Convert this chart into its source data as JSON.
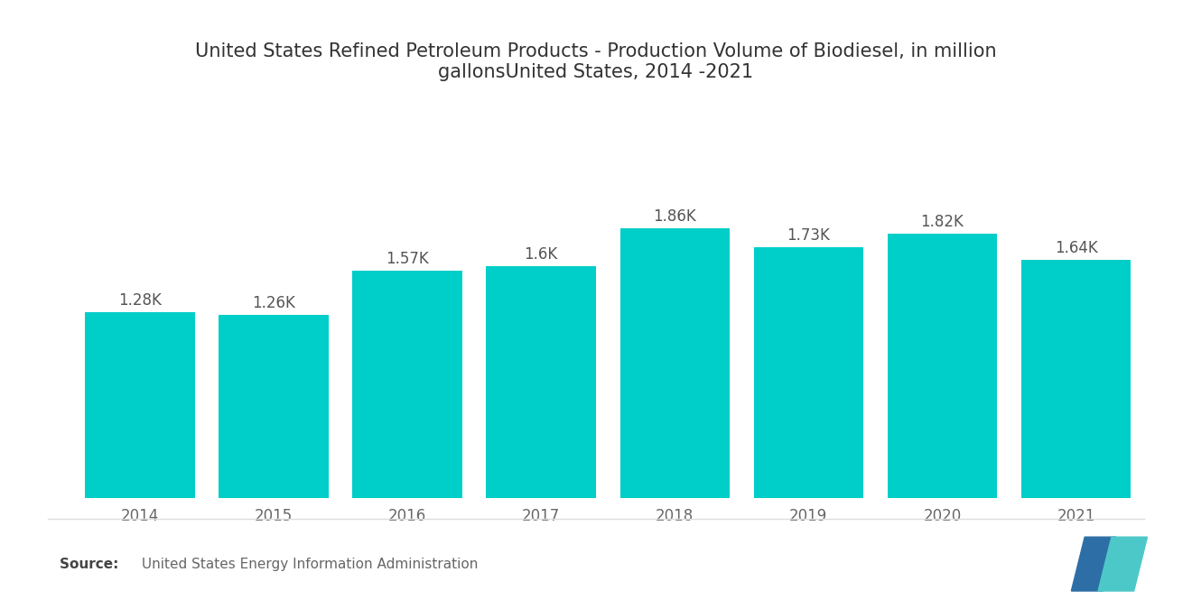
{
  "title": "United States Refined Petroleum Products - Production Volume of Biodiesel, in million\ngallonsUnited States, 2014 -2021",
  "years": [
    "2014",
    "2015",
    "2016",
    "2017",
    "2018",
    "2019",
    "2020",
    "2021"
  ],
  "values": [
    1280,
    1260,
    1570,
    1600,
    1860,
    1730,
    1820,
    1640
  ],
  "labels": [
    "1.28K",
    "1.26K",
    "1.57K",
    "1.6K",
    "1.86K",
    "1.73K",
    "1.82K",
    "1.64K"
  ],
  "bar_color": "#00CEC9",
  "background_color": "#ffffff",
  "title_fontsize": 15,
  "label_fontsize": 12,
  "tick_fontsize": 12,
  "source_bold": "Source: ",
  "source_rest": " United States Energy Information Administration",
  "ylim": [
    0,
    2400
  ],
  "bar_width": 0.82,
  "logo_blue": "#2E6EA6",
  "logo_teal": "#4DC8C8"
}
